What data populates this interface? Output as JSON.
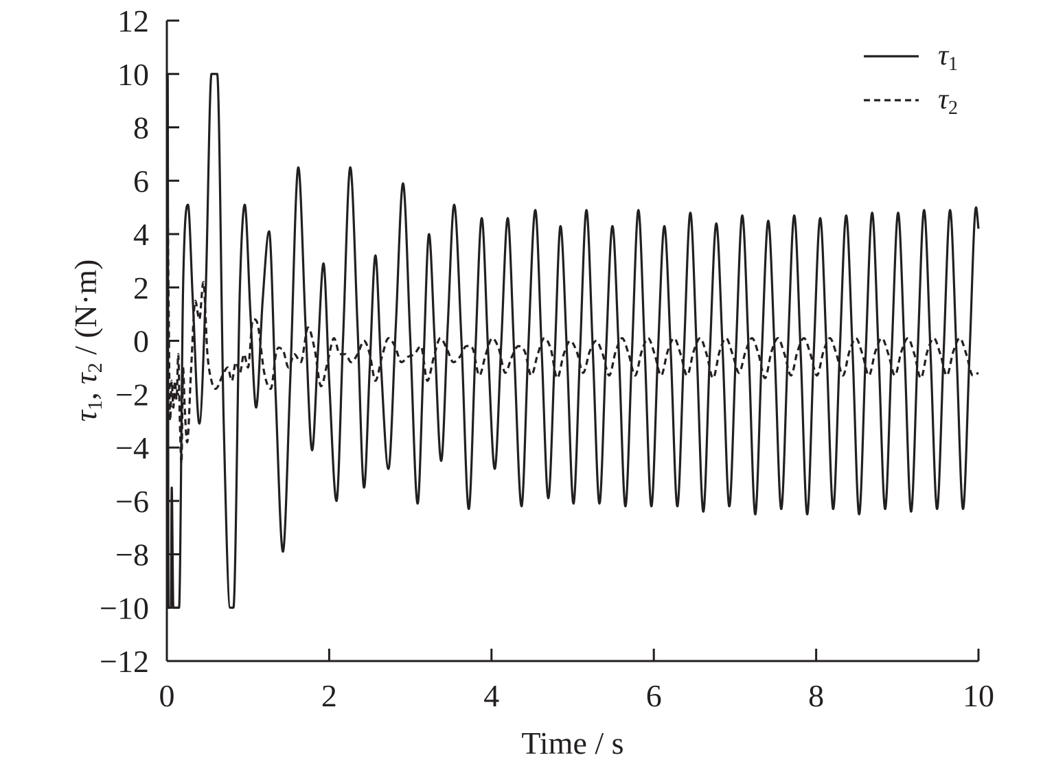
{
  "chart_data": {
    "type": "line",
    "title": "",
    "xlabel": "Time / s",
    "ylabel_parts": {
      "sym1": "τ",
      "sub1": "1",
      "sep": ", ",
      "sym2": "τ",
      "sub2": "2",
      "unit": " / (N·m)"
    },
    "xlim": [
      0,
      10
    ],
    "ylim": [
      -12,
      12
    ],
    "x_ticks": [
      "0",
      "2",
      "4",
      "6",
      "8",
      "10"
    ],
    "y_ticks": [
      "12",
      "10",
      "8",
      "6",
      "4",
      "2",
      "0",
      "−2",
      "−4",
      "−6",
      "−8",
      "−10",
      "−12"
    ],
    "grid": false,
    "legend_position": "top-right",
    "legend": [
      {
        "symbol": "τ",
        "sub": "1",
        "style": "solid"
      },
      {
        "symbol": "τ",
        "sub": "2",
        "style": "dashed"
      }
    ],
    "series": [
      {
        "style": "solid",
        "points": [
          [
            0.0,
            10
          ],
          [
            0.01,
            10
          ],
          [
            0.02,
            -10
          ],
          [
            0.05,
            -10
          ],
          [
            0.06,
            -5.5
          ],
          [
            0.08,
            -10
          ],
          [
            0.15,
            -10
          ],
          [
            0.2,
            2.0
          ],
          [
            0.26,
            5.1
          ],
          [
            0.32,
            1.5
          ],
          [
            0.4,
            -3.1
          ],
          [
            0.48,
            2.0
          ],
          [
            0.55,
            10
          ],
          [
            0.62,
            10
          ],
          [
            0.7,
            -3.0
          ],
          [
            0.78,
            -10
          ],
          [
            0.82,
            -10
          ],
          [
            0.9,
            2.0
          ],
          [
            0.96,
            5.1
          ],
          [
            1.03,
            1.0
          ],
          [
            1.1,
            -2.5
          ],
          [
            1.18,
            1.5
          ],
          [
            1.26,
            4.1
          ],
          [
            1.34,
            -2.0
          ],
          [
            1.43,
            -7.9
          ],
          [
            1.52,
            -1.5
          ],
          [
            1.62,
            6.5
          ],
          [
            1.71,
            0.5
          ],
          [
            1.79,
            -4.1
          ],
          [
            1.86,
            -0.5
          ],
          [
            1.93,
            2.9
          ],
          [
            2.0,
            -1.5
          ],
          [
            2.09,
            -6.0
          ],
          [
            2.17,
            0.0
          ],
          [
            2.26,
            6.5
          ],
          [
            2.35,
            0.5
          ],
          [
            2.43,
            -5.5
          ],
          [
            2.5,
            -1.0
          ],
          [
            2.57,
            3.2
          ],
          [
            2.64,
            -1.0
          ],
          [
            2.73,
            -4.8
          ],
          [
            2.82,
            0.5
          ],
          [
            2.91,
            5.9
          ],
          [
            3.0,
            0.0
          ],
          [
            3.09,
            -6.1
          ],
          [
            3.16,
            -1.0
          ],
          [
            3.23,
            4.0
          ],
          [
            3.3,
            0.0
          ],
          [
            3.38,
            -4.5
          ],
          [
            3.46,
            0.5
          ],
          [
            3.54,
            5.1
          ],
          [
            3.63,
            0.0
          ],
          [
            3.72,
            -6.3
          ],
          [
            3.8,
            -0.5
          ],
          [
            3.88,
            4.6
          ],
          [
            3.96,
            -0.5
          ],
          [
            4.04,
            -4.8
          ],
          [
            4.12,
            -0.1
          ],
          [
            4.2,
            4.6
          ],
          [
            4.28,
            -0.5
          ],
          [
            4.37,
            -6.2
          ],
          [
            4.45,
            -0.5
          ],
          [
            4.54,
            4.9
          ],
          [
            4.62,
            -0.5
          ],
          [
            4.7,
            -5.9
          ],
          [
            4.78,
            -0.5
          ],
          [
            4.85,
            4.3
          ],
          [
            4.93,
            -0.5
          ],
          [
            5.01,
            -6.1
          ],
          [
            5.09,
            -0.5
          ],
          [
            5.17,
            4.9
          ],
          [
            5.25,
            -0.5
          ],
          [
            5.33,
            -6.1
          ],
          [
            5.41,
            -0.5
          ],
          [
            5.49,
            4.3
          ],
          [
            5.57,
            -0.5
          ],
          [
            5.65,
            -6.2
          ],
          [
            5.73,
            -0.5
          ],
          [
            5.81,
            4.9
          ],
          [
            5.89,
            -0.5
          ],
          [
            5.97,
            -6.2
          ],
          [
            6.05,
            -0.5
          ],
          [
            6.13,
            4.3
          ],
          [
            6.21,
            -0.5
          ],
          [
            6.29,
            -6.2
          ],
          [
            6.37,
            -0.5
          ],
          [
            6.45,
            4.8
          ],
          [
            6.53,
            -0.5
          ],
          [
            6.61,
            -6.4
          ],
          [
            6.69,
            -0.5
          ],
          [
            6.77,
            4.4
          ],
          [
            6.85,
            -0.5
          ],
          [
            6.93,
            -6.2
          ],
          [
            7.01,
            -0.5
          ],
          [
            7.09,
            4.7
          ],
          [
            7.17,
            -0.5
          ],
          [
            7.25,
            -6.5
          ],
          [
            7.33,
            -0.5
          ],
          [
            7.41,
            4.5
          ],
          [
            7.49,
            -0.5
          ],
          [
            7.57,
            -6.3
          ],
          [
            7.65,
            -0.5
          ],
          [
            7.73,
            4.7
          ],
          [
            7.81,
            -0.5
          ],
          [
            7.89,
            -6.5
          ],
          [
            7.97,
            -0.5
          ],
          [
            8.05,
            4.6
          ],
          [
            8.13,
            -0.5
          ],
          [
            8.21,
            -6.3
          ],
          [
            8.29,
            -0.5
          ],
          [
            8.37,
            4.7
          ],
          [
            8.45,
            -0.5
          ],
          [
            8.53,
            -6.5
          ],
          [
            8.61,
            -0.5
          ],
          [
            8.69,
            4.8
          ],
          [
            8.77,
            -0.5
          ],
          [
            8.85,
            -6.3
          ],
          [
            8.93,
            -0.5
          ],
          [
            9.01,
            4.8
          ],
          [
            9.09,
            -0.5
          ],
          [
            9.17,
            -6.4
          ],
          [
            9.25,
            -0.5
          ],
          [
            9.33,
            4.9
          ],
          [
            9.41,
            -0.5
          ],
          [
            9.49,
            -6.3
          ],
          [
            9.57,
            -0.5
          ],
          [
            9.65,
            4.9
          ],
          [
            9.73,
            -0.5
          ],
          [
            9.81,
            -6.3
          ],
          [
            9.89,
            -0.5
          ],
          [
            9.97,
            5.0
          ],
          [
            10.0,
            4.2
          ]
        ]
      },
      {
        "style": "dashed",
        "points": [
          [
            0.0,
            10
          ],
          [
            0.02,
            2.0
          ],
          [
            0.04,
            -3.0
          ],
          [
            0.06,
            -1.5
          ],
          [
            0.08,
            -2.5
          ],
          [
            0.1,
            -1.5
          ],
          [
            0.12,
            -2.2
          ],
          [
            0.14,
            -0.5
          ],
          [
            0.16,
            -3.0
          ],
          [
            0.18,
            -4.6
          ],
          [
            0.2,
            -1.0
          ],
          [
            0.22,
            -2.5
          ],
          [
            0.25,
            -3.8
          ],
          [
            0.3,
            -1.0
          ],
          [
            0.35,
            1.5
          ],
          [
            0.4,
            0.8
          ],
          [
            0.45,
            2.2
          ],
          [
            0.5,
            -0.5
          ],
          [
            0.55,
            -1.5
          ],
          [
            0.6,
            -1.8
          ],
          [
            0.7,
            -1.2
          ],
          [
            0.75,
            -1.0
          ],
          [
            0.8,
            -1.5
          ],
          [
            0.85,
            -0.8
          ],
          [
            0.9,
            -1.2
          ],
          [
            0.95,
            -0.5
          ],
          [
            1.0,
            -1.0
          ],
          [
            1.06,
            0.8
          ],
          [
            1.12,
            0.6
          ],
          [
            1.2,
            -1.2
          ],
          [
            1.28,
            -1.8
          ],
          [
            1.35,
            -0.4
          ],
          [
            1.42,
            -0.3
          ],
          [
            1.5,
            -1.0
          ],
          [
            1.57,
            -0.5
          ],
          [
            1.65,
            -0.8
          ],
          [
            1.74,
            0.5
          ],
          [
            1.82,
            -0.3
          ],
          [
            1.9,
            -1.7
          ],
          [
            1.98,
            -0.8
          ],
          [
            2.06,
            0.1
          ],
          [
            2.13,
            -0.5
          ],
          [
            2.2,
            -0.5
          ],
          [
            2.27,
            -0.8
          ],
          [
            2.35,
            -0.5
          ],
          [
            2.43,
            0.0
          ],
          [
            2.5,
            -0.5
          ],
          [
            2.57,
            -1.5
          ],
          [
            2.65,
            -0.6
          ],
          [
            2.73,
            0.1
          ],
          [
            2.81,
            -0.2
          ],
          [
            2.89,
            -0.8
          ],
          [
            2.97,
            -0.6
          ],
          [
            3.05,
            -0.5
          ],
          [
            3.13,
            -0.2
          ],
          [
            3.21,
            -1.5
          ],
          [
            3.29,
            -0.6
          ],
          [
            3.37,
            0.1
          ],
          [
            3.45,
            -0.3
          ],
          [
            3.53,
            -0.8
          ],
          [
            3.61,
            -0.6
          ],
          [
            3.69,
            -0.2
          ],
          [
            3.77,
            -0.3
          ],
          [
            3.85,
            -1.3
          ],
          [
            3.93,
            -0.5
          ],
          [
            4.01,
            0.1
          ],
          [
            4.09,
            -0.3
          ],
          [
            4.17,
            -1.2
          ],
          [
            4.25,
            -0.6
          ],
          [
            4.33,
            -0.2
          ],
          [
            4.41,
            -0.4
          ],
          [
            4.49,
            -1.3
          ],
          [
            4.57,
            -0.5
          ],
          [
            4.65,
            0.1
          ],
          [
            4.73,
            -0.3
          ],
          [
            4.81,
            -1.4
          ],
          [
            4.89,
            -0.5
          ],
          [
            4.97,
            0.0
          ],
          [
            5.05,
            -0.4
          ],
          [
            5.13,
            -1.2
          ],
          [
            5.21,
            -0.4
          ],
          [
            5.29,
            0.0
          ],
          [
            5.37,
            -0.5
          ],
          [
            5.45,
            -1.3
          ],
          [
            5.53,
            -0.4
          ],
          [
            5.61,
            0.1
          ],
          [
            5.69,
            -0.5
          ],
          [
            5.77,
            -1.3
          ],
          [
            5.85,
            -0.4
          ],
          [
            5.93,
            0.1
          ],
          [
            6.01,
            -0.5
          ],
          [
            6.09,
            -1.3
          ],
          [
            6.17,
            -0.4
          ],
          [
            6.25,
            0.1
          ],
          [
            6.33,
            -0.5
          ],
          [
            6.41,
            -1.3
          ],
          [
            6.49,
            -0.4
          ],
          [
            6.57,
            0.1
          ],
          [
            6.65,
            -0.5
          ],
          [
            6.73,
            -1.4
          ],
          [
            6.81,
            -0.4
          ],
          [
            6.89,
            0.1
          ],
          [
            6.97,
            -0.5
          ],
          [
            7.05,
            -1.2
          ],
          [
            7.13,
            -0.4
          ],
          [
            7.21,
            0.1
          ],
          [
            7.29,
            -0.5
          ],
          [
            7.37,
            -1.4
          ],
          [
            7.45,
            -0.4
          ],
          [
            7.53,
            0.1
          ],
          [
            7.61,
            -0.5
          ],
          [
            7.69,
            -1.3
          ],
          [
            7.77,
            -0.4
          ],
          [
            7.85,
            0.1
          ],
          [
            7.93,
            -0.5
          ],
          [
            8.01,
            -1.3
          ],
          [
            8.09,
            -0.4
          ],
          [
            8.17,
            0.1
          ],
          [
            8.25,
            -0.5
          ],
          [
            8.33,
            -1.3
          ],
          [
            8.41,
            -0.4
          ],
          [
            8.49,
            0.1
          ],
          [
            8.57,
            -0.5
          ],
          [
            8.65,
            -1.3
          ],
          [
            8.73,
            -0.4
          ],
          [
            8.81,
            0.1
          ],
          [
            8.89,
            -0.5
          ],
          [
            8.97,
            -1.3
          ],
          [
            9.05,
            -0.4
          ],
          [
            9.13,
            0.1
          ],
          [
            9.21,
            -0.5
          ],
          [
            9.29,
            -1.4
          ],
          [
            9.37,
            -0.4
          ],
          [
            9.45,
            0.1
          ],
          [
            9.53,
            -0.5
          ],
          [
            9.61,
            -1.3
          ],
          [
            9.69,
            -0.4
          ],
          [
            9.77,
            0.1
          ],
          [
            9.85,
            -0.5
          ],
          [
            9.93,
            -1.3
          ],
          [
            10.0,
            -1.2
          ]
        ]
      }
    ]
  }
}
